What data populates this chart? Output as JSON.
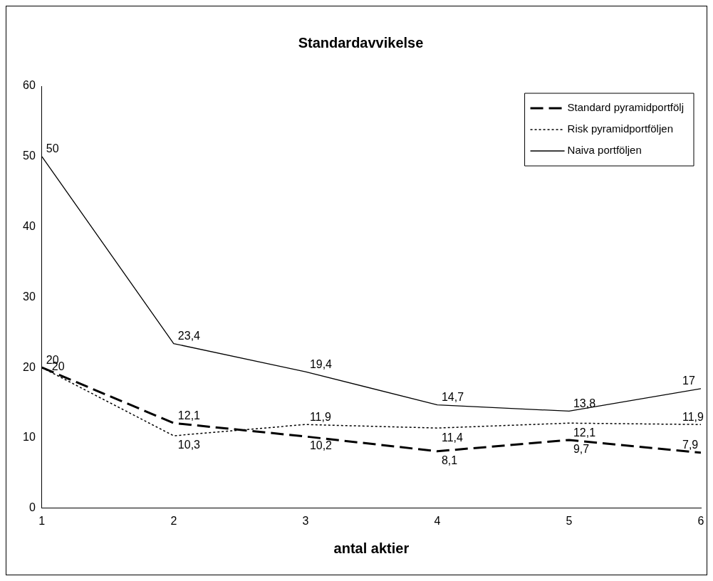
{
  "chart_data": {
    "type": "line",
    "title": "Standardavvikelse",
    "xlabel": "antal aktier",
    "x": [
      1,
      2,
      3,
      4,
      5,
      6
    ],
    "xlim": [
      1,
      6
    ],
    "xticks": [
      1,
      2,
      3,
      4,
      5,
      6
    ],
    "ylim": [
      0,
      60
    ],
    "yticks": [
      0,
      10,
      20,
      30,
      40,
      50,
      60
    ],
    "grid": false,
    "legend": "top right",
    "marker": "none",
    "series": [
      {
        "name": "Standard pyramidportfölj",
        "color": "#000000",
        "line_style": "dashed",
        "values": [
          20,
          12.1,
          10.2,
          8.1,
          9.7,
          7.9
        ],
        "value_labels": [
          "20",
          "12,1",
          "10,2",
          "8,1",
          "9,7",
          "7,9"
        ]
      },
      {
        "name": "Risk pyramidportföljen",
        "color": "#000000",
        "line_style": "dotted",
        "values": [
          20,
          10.3,
          11.9,
          11.4,
          12.1,
          11.9
        ],
        "value_labels": [
          "20",
          "10,3",
          "11,9",
          "11,4",
          "12,1",
          "11,9"
        ]
      },
      {
        "name": "Naiva portföljen",
        "color": "#000000",
        "line_style": "solid",
        "values": [
          50,
          23.4,
          19.4,
          14.7,
          13.8,
          17
        ],
        "value_labels": [
          "50",
          "23,4",
          "19,4",
          "14,7",
          "13,8",
          "17"
        ]
      }
    ]
  }
}
